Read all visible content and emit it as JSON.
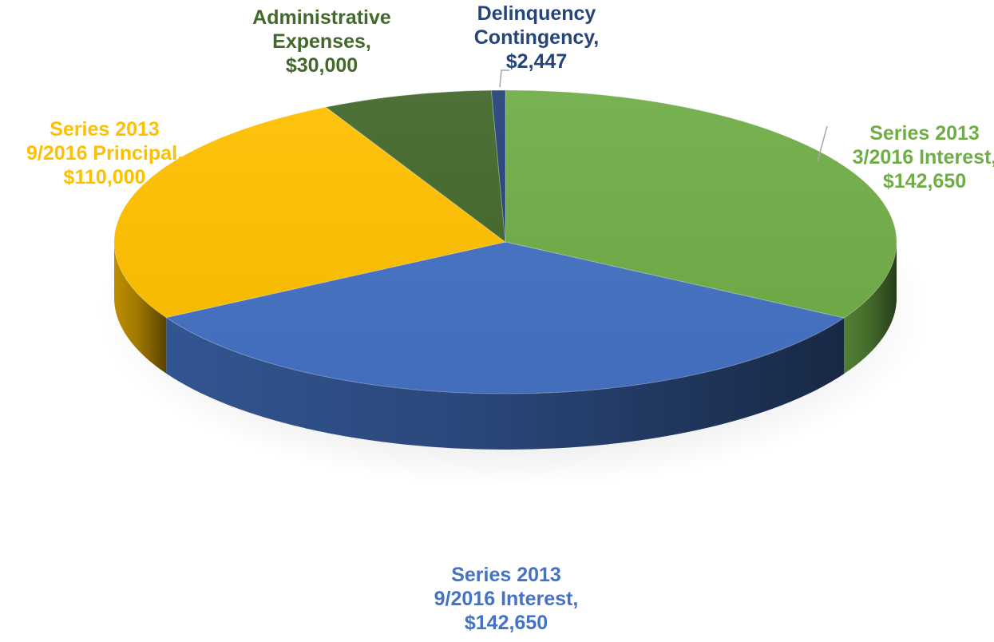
{
  "chart_data": {
    "type": "pie",
    "title": "",
    "legend": "none",
    "three_d": true,
    "slices": [
      {
        "name": "Series 2013 3/2016 Interest",
        "value": 142650,
        "color": "#70AD47",
        "label_lines": [
          "Series 2013",
          "3/2016 Interest,",
          "$142,650"
        ]
      },
      {
        "name": "Series 2013 9/2016 Interest",
        "value": 142650,
        "color": "#4472C4",
        "label_lines": [
          "Series 2013",
          "9/2016 Interest,",
          "$142,650"
        ]
      },
      {
        "name": "Series 2013 9/2016 Principal",
        "value": 110000,
        "color": "#FFC000",
        "label_lines": [
          "Series 2013",
          "9/2016 Principal,",
          "$110,000"
        ]
      },
      {
        "name": "Administrative Expenses",
        "value": 30000,
        "color": "#43682B",
        "label_lines": [
          "Administrative",
          "Expenses,",
          "$30,000"
        ]
      },
      {
        "name": "Delinquency Contingency",
        "value": 2447,
        "color": "#264478",
        "label_lines": [
          "Delinquency",
          "Contingency,",
          "$2,447"
        ]
      }
    ]
  }
}
